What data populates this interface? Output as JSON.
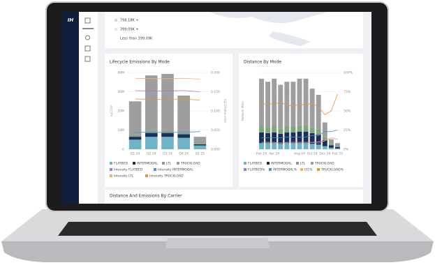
{
  "sidebar": {
    "logo": "IH"
  },
  "map_legend": [
    "798.18K +",
    "399.09K +",
    "Less than 399.09K"
  ],
  "chart_data": [
    {
      "type": "bar",
      "title": "Lifecycle Emissions By Mode",
      "y_label": "kgCO2e",
      "y2_label": "kgCO2e/ton-mile",
      "stacked": true,
      "grid": true,
      "categories": [
        "Q1 24",
        "Q2 24",
        "Q3 24",
        "Q4 24",
        "Q1 25"
      ],
      "ylim": [
        0,
        40000000
      ],
      "yticks": [
        0,
        {
          "value": 10000000,
          "label": "10M"
        },
        {
          "value": 20000000,
          "label": "20M"
        },
        {
          "value": 30000000,
          "label": "30M"
        },
        {
          "value": 40000000,
          "label": "40M"
        }
      ],
      "y2lim": [
        0,
        0.2
      ],
      "y2ticks": [
        {
          "value": 0,
          "label": "0.000"
        },
        {
          "value": 0.05,
          "label": "0.050"
        },
        {
          "value": 0.1,
          "label": "0.100"
        },
        {
          "value": 0.15,
          "label": "0.150"
        },
        {
          "value": 0.2,
          "label": "0.200"
        }
      ],
      "series": [
        {
          "name": "FLATBED",
          "color": "#6fb3c8",
          "values": [
            5000000,
            6500000,
            6500000,
            6000000,
            2000000
          ]
        },
        {
          "name": "INTERMODAL",
          "color": "#1b2f5e",
          "values": [
            1500000,
            2000000,
            2000000,
            1800000,
            600000
          ]
        },
        {
          "name": "LTL",
          "color": "#7da87b",
          "values": [
            800000,
            800000,
            800000,
            700000,
            300000
          ]
        },
        {
          "name": "TRUCKLOAD",
          "color": "#9e9e9e",
          "values": [
            17700000,
            29200000,
            30000000,
            19500000,
            3600000
          ]
        },
        {
          "name": "Intensity FLATBED",
          "color": "#9b7fd4",
          "axis": "y2",
          "values": [
            0.153,
            0.152,
            0.152,
            0.153,
            0.15
          ]
        },
        {
          "name": "Intensity INTERMODAL",
          "color": "#5b8bd6",
          "axis": "y2",
          "values": [
            0.044,
            0.045,
            0.045,
            0.044,
            0.046
          ]
        },
        {
          "name": "Intensity LTL",
          "color": "#f0b070",
          "axis": "y2",
          "values": [
            0.185,
            0.184,
            0.184,
            0.185,
            0.183
          ]
        },
        {
          "name": "Intensity TRUCKLOAD",
          "color": "#e8933a",
          "axis": "y2",
          "values": [
            0.131,
            0.13,
            0.13,
            0.131,
            0.128
          ]
        }
      ]
    },
    {
      "type": "bar",
      "title": "Distance By Mode",
      "y_label": "Network Miles",
      "stacked": true,
      "grid": true,
      "categories": [
        "Feb 24",
        null,
        "Apr 24",
        null,
        null,
        null,
        "Aug 24",
        null,
        "Oct 24",
        null,
        "Dec 24",
        null,
        "Feb 25"
      ],
      "ylim": [
        0,
        100
      ],
      "y2lim": [
        0,
        100
      ],
      "y2ticks": [
        {
          "value": 0,
          "label": "0%"
        },
        {
          "value": 25,
          "label": "25%"
        },
        {
          "value": 50,
          "label": "50%"
        },
        {
          "value": 75,
          "label": "75%"
        },
        {
          "value": 100,
          "label": "100%"
        }
      ],
      "series": [
        {
          "name": "FLATBED",
          "color": "#6fb3c8",
          "values": [
            8,
            8,
            8,
            7,
            8,
            8,
            8,
            8,
            7,
            6,
            4,
            2,
            1
          ]
        },
        {
          "name": "INTERMODAL",
          "color": "#1b2f5e",
          "values": [
            14,
            13,
            14,
            13,
            14,
            14,
            15,
            15,
            14,
            13,
            8,
            3,
            2
          ]
        },
        {
          "name": "LTL",
          "color": "#7da87b",
          "values": [
            8,
            8,
            8,
            7,
            8,
            8,
            8,
            8,
            7,
            7,
            4,
            2,
            1
          ]
        },
        {
          "name": "TRUCKLOAD",
          "color": "#9e9e9e",
          "values": [
            62,
            59,
            62,
            57,
            58,
            58,
            61,
            61,
            51,
            45,
            19,
            6,
            4
          ]
        },
        {
          "name": "FLATBED%",
          "color": "#9b7fd4",
          "axis": "y2",
          "values": [
            9,
            9,
            9,
            8,
            9,
            9,
            9,
            9,
            9,
            8,
            11,
            15,
            13
          ]
        },
        {
          "name": "INTERMODAL%",
          "color": "#5b8bd6",
          "axis": "y2",
          "values": [
            15,
            15,
            15,
            15,
            16,
            16,
            16,
            16,
            18,
            18,
            23,
            23,
            25
          ]
        },
        {
          "name": "LTL%",
          "color": "#f0b070",
          "axis": "y2",
          "values": [
            9,
            9,
            9,
            8,
            9,
            9,
            9,
            9,
            9,
            10,
            11,
            15,
            13
          ]
        },
        {
          "name": "TRUCKLOAD%",
          "color": "#e8933a",
          "axis": "y2",
          "values": [
            58,
            60,
            58,
            62,
            57,
            57,
            58,
            58,
            60,
            55,
            45,
            50,
            72
          ]
        }
      ]
    }
  ],
  "bottom_panel": {
    "title": "Distance And Emissions By Carrier"
  }
}
